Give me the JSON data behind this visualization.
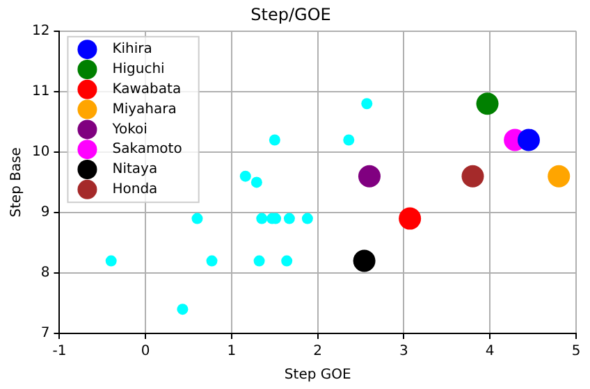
{
  "chart_data": {
    "type": "scatter",
    "title": "Step/GOE",
    "xlabel": "Step GOE",
    "ylabel": "Step Base",
    "xlim": [
      -1,
      5
    ],
    "xticks": [
      -1,
      0,
      1,
      2,
      3,
      4,
      5
    ],
    "ylim": [
      7,
      12
    ],
    "yticks": [
      7,
      8,
      9,
      10,
      11,
      12
    ],
    "grid": true,
    "legend": "top left",
    "marker": "circle",
    "series": [
      {
        "color": "#00ffff",
        "x": [
          -0.4,
          0.43,
          0.6,
          0.77,
          1.16,
          1.29,
          1.35,
          1.32,
          1.5,
          1.47,
          1.51,
          1.67,
          1.64,
          1.88,
          2.36,
          2.57
        ],
        "values": [
          8.2,
          7.4,
          8.9,
          8.2,
          9.6,
          9.5,
          8.9,
          8.2,
          10.2,
          8.9,
          8.9,
          8.9,
          8.2,
          8.9,
          10.2,
          10.8
        ]
      },
      {
        "name": "Kihira",
        "color": "#0000ff",
        "x": [
          4.45
        ],
        "values": [
          10.2
        ]
      },
      {
        "name": "Higuchi",
        "color": "#008000",
        "x": [
          3.97
        ],
        "values": [
          10.8
        ]
      },
      {
        "name": "Kawabata",
        "color": "#ff0000",
        "x": [
          3.07
        ],
        "values": [
          8.9
        ]
      },
      {
        "name": "Miyahara",
        "color": "#ffa500",
        "x": [
          4.8
        ],
        "values": [
          9.6
        ]
      },
      {
        "name": "Yokoi",
        "color": "#800080",
        "x": [
          2.6
        ],
        "values": [
          9.6
        ]
      },
      {
        "name": "Sakamoto",
        "color": "#ff00ff",
        "x": [
          4.29
        ],
        "values": [
          10.2
        ]
      },
      {
        "name": "Nitaya",
        "color": "#000000",
        "x": [
          2.54
        ],
        "values": [
          8.2
        ]
      },
      {
        "name": "Honda",
        "color": "#a52a2a",
        "x": [
          3.8
        ],
        "values": [
          9.6
        ]
      }
    ]
  }
}
